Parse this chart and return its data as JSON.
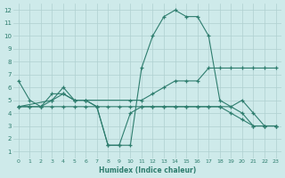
{
  "xlabel": "Humidex (Indice chaleur)",
  "bg_color": "#ceeaea",
  "line_color": "#2e7d6e",
  "grid_color": "#afd0d0",
  "xlim": [
    -0.5,
    23.5
  ],
  "ylim": [
    0.5,
    12.5
  ],
  "xticks": [
    0,
    1,
    2,
    3,
    4,
    5,
    6,
    7,
    8,
    9,
    10,
    11,
    12,
    13,
    14,
    15,
    16,
    17,
    18,
    19,
    20,
    21,
    22,
    23
  ],
  "yticks": [
    1,
    2,
    3,
    4,
    5,
    6,
    7,
    8,
    9,
    10,
    11,
    12
  ],
  "series": [
    {
      "x": [
        0,
        1,
        2,
        3,
        4,
        5,
        6,
        7,
        8,
        9,
        10,
        11,
        12,
        13,
        14,
        15,
        16,
        17,
        18,
        20,
        21,
        22,
        23
      ],
      "y": [
        6.5,
        5.0,
        4.5,
        5.5,
        5.5,
        5.0,
        5.0,
        4.5,
        1.5,
        1.5,
        1.5,
        7.5,
        10.0,
        11.5,
        12.0,
        11.5,
        11.5,
        10.0,
        5.0,
        4.0,
        3.0,
        3.0,
        3.0
      ]
    },
    {
      "x": [
        0,
        3,
        4,
        5,
        6,
        10,
        11,
        12,
        13,
        14,
        15,
        16,
        17,
        18,
        19,
        20,
        21,
        22,
        23
      ],
      "y": [
        4.5,
        5.0,
        5.5,
        5.0,
        5.0,
        5.0,
        5.0,
        5.5,
        6.0,
        6.5,
        6.5,
        6.5,
        7.5,
        7.5,
        7.5,
        7.5,
        7.5,
        7.5,
        7.5
      ]
    },
    {
      "x": [
        0,
        1,
        2,
        3,
        4,
        5,
        6,
        7,
        8,
        9,
        10,
        11,
        12,
        13,
        14,
        15,
        16,
        17,
        18,
        19,
        20,
        21,
        22,
        23
      ],
      "y": [
        4.5,
        4.5,
        4.5,
        5.0,
        6.0,
        5.0,
        5.0,
        4.5,
        1.5,
        1.5,
        4.0,
        4.5,
        4.5,
        4.5,
        4.5,
        4.5,
        4.5,
        4.5,
        4.5,
        4.5,
        5.0,
        4.0,
        3.0,
        3.0
      ]
    },
    {
      "x": [
        0,
        1,
        2,
        3,
        4,
        5,
        6,
        7,
        8,
        9,
        10,
        11,
        12,
        13,
        14,
        15,
        16,
        17,
        18,
        19,
        20,
        21,
        22,
        23
      ],
      "y": [
        4.5,
        4.5,
        4.5,
        4.5,
        4.5,
        4.5,
        4.5,
        4.5,
        4.5,
        4.5,
        4.5,
        4.5,
        4.5,
        4.5,
        4.5,
        4.5,
        4.5,
        4.5,
        4.5,
        4.0,
        3.5,
        3.0,
        3.0,
        3.0
      ]
    }
  ]
}
